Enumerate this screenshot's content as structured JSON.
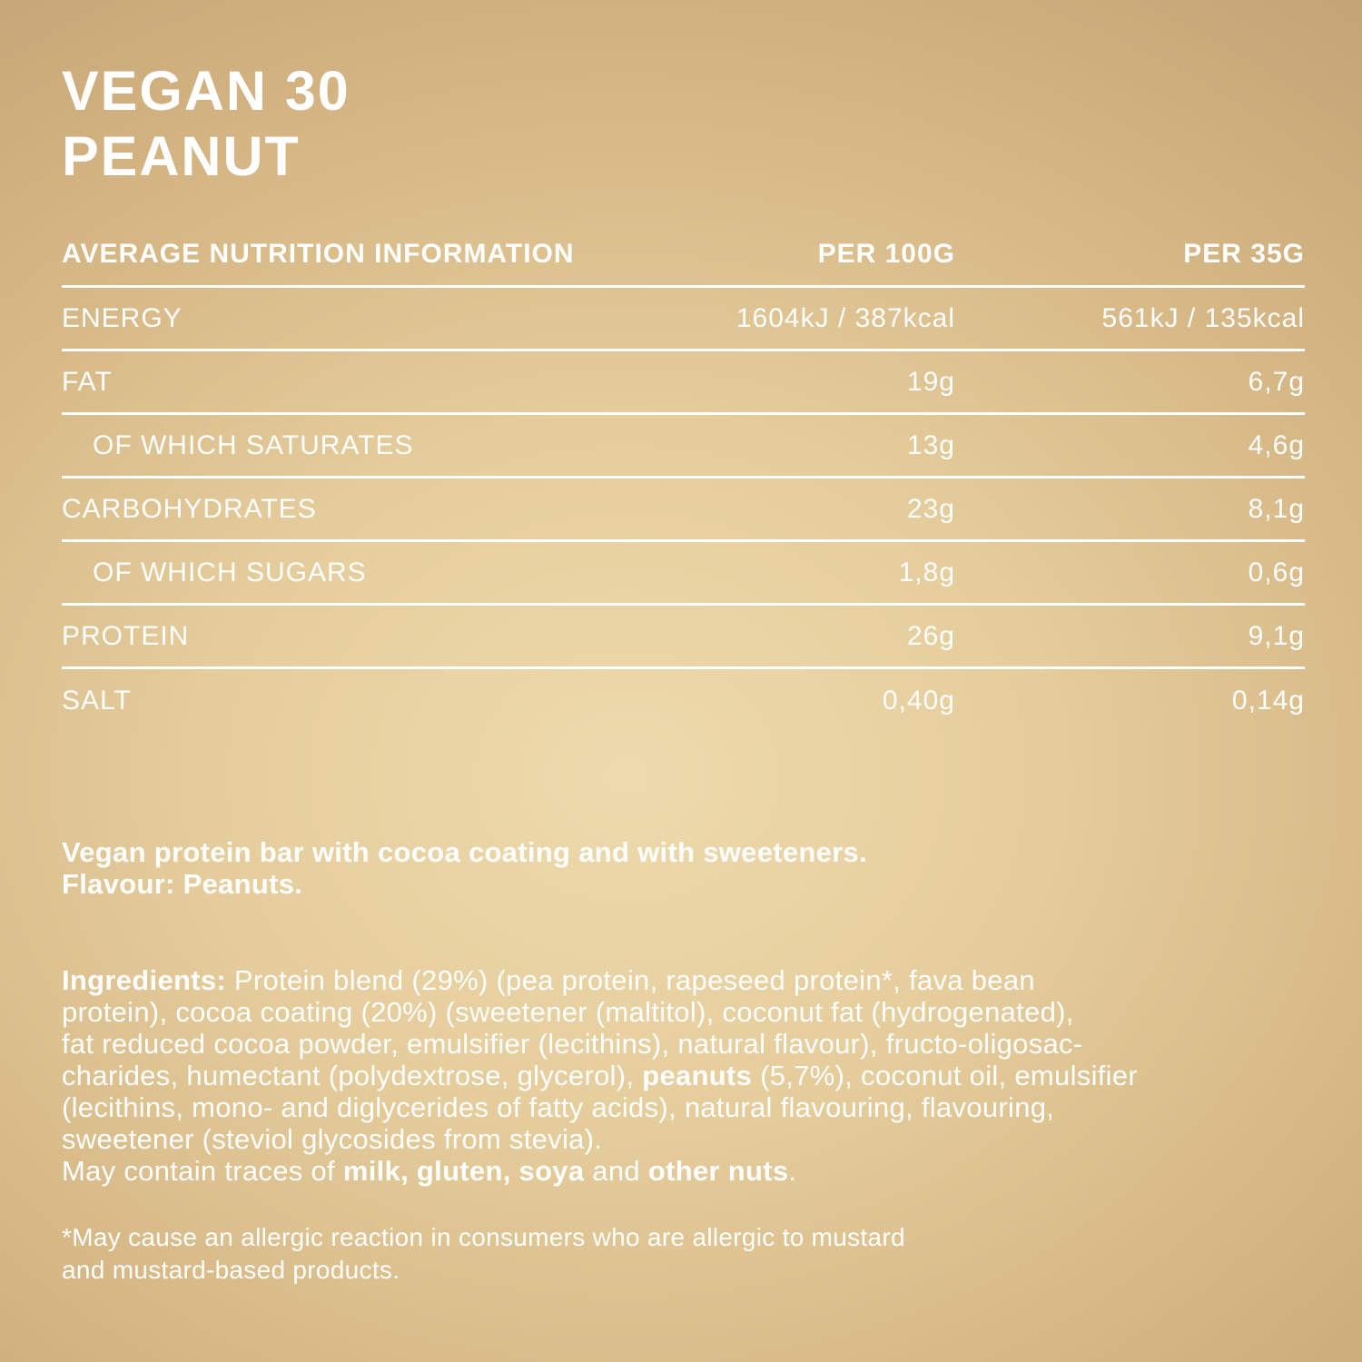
{
  "colors": {
    "background_center": "#eedaad",
    "background_edge": "#b6966a",
    "text": "#ffffff"
  },
  "title": {
    "line1": "VEGAN 30",
    "line2": "PEANUT"
  },
  "nutrition_table": {
    "header": {
      "label": "AVERAGE NUTRITION INFORMATION",
      "per100": "PER 100G",
      "per35": "PER 35G"
    },
    "rows": [
      {
        "label": "ENERGY",
        "per100": "1604kJ / 387kcal",
        "per35": "561kJ / 135kcal",
        "indent": false
      },
      {
        "label": "FAT",
        "per100": "19g",
        "per35": "6,7g",
        "indent": false
      },
      {
        "label": "OF WHICH SATURATES",
        "per100": "13g",
        "per35": "4,6g",
        "indent": true
      },
      {
        "label": "CARBOHYDRATES",
        "per100": "23g",
        "per35": "8,1g",
        "indent": false
      },
      {
        "label": "OF WHICH SUGARS",
        "per100": "1,8g",
        "per35": "0,6g",
        "indent": true
      },
      {
        "label": "PROTEIN",
        "per100": "26g",
        "per35": "9,1g",
        "indent": false
      },
      {
        "label": "SALT",
        "per100": "0,40g",
        "per35": "0,14g",
        "indent": false
      }
    ]
  },
  "description": {
    "line1": "Vegan protein bar with cocoa coating and with sweeteners.",
    "line2": "Flavour: Peanuts."
  },
  "ingredients": {
    "lines": [
      {
        "segments": [
          {
            "text": "Ingredients: ",
            "bold": true
          },
          {
            "text": "Protein blend (29%) (pea protein, rapeseed protein*, fava bean",
            "bold": false
          }
        ]
      },
      {
        "segments": [
          {
            "text": "protein), cocoa coating (20%) (sweetener (maltitol), coconut fat (hydrogenated),",
            "bold": false
          }
        ]
      },
      {
        "segments": [
          {
            "text": "fat reduced cocoa powder, emulsifier (lecithins), natural flavour), fructo-oligosac-",
            "bold": false
          }
        ]
      },
      {
        "segments": [
          {
            "text": "charides, humectant (polydextrose, glycerol), ",
            "bold": false
          },
          {
            "text": "peanuts",
            "bold": true
          },
          {
            "text": " (5,7%), coconut oil, emulsifier",
            "bold": false
          }
        ]
      },
      {
        "segments": [
          {
            "text": "(lecithins, mono- and diglycerides of fatty acids), natural flavouring, flavouring,",
            "bold": false
          }
        ]
      },
      {
        "segments": [
          {
            "text": "sweetener (steviol glycosides from stevia).",
            "bold": false
          }
        ]
      },
      {
        "segments": [
          {
            "text": "May contain traces of ",
            "bold": false
          },
          {
            "text": "milk, gluten, soya",
            "bold": true
          },
          {
            "text": " and ",
            "bold": false
          },
          {
            "text": "other nuts",
            "bold": true
          },
          {
            "text": ".",
            "bold": false
          }
        ]
      }
    ]
  },
  "allergen_note": {
    "line1": "*May cause an allergic reaction in consumers who are allergic to mustard",
    "line2": "and mustard-based products."
  }
}
